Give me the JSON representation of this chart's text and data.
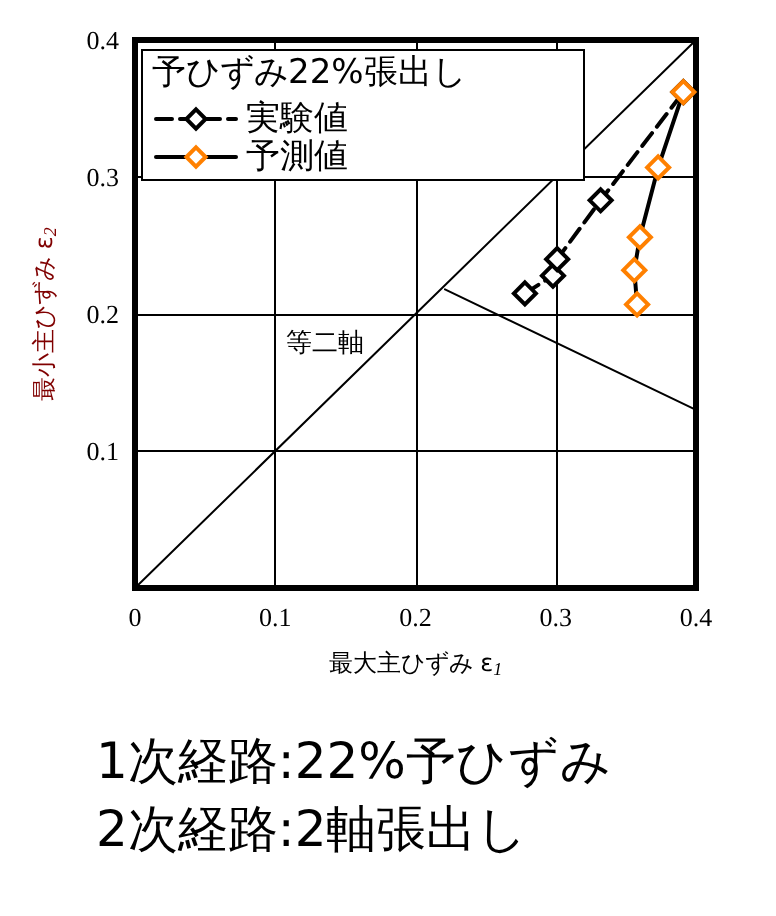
{
  "chart_data": {
    "type": "line",
    "xlabel": "最大主ひずみ ε$_{1}$",
    "ylabel": "最小主ひずみ ε$_{2}$",
    "legend_title": "予ひずみ22%張出し",
    "xlim": [
      0,
      0.4
    ],
    "ylim": [
      0,
      0.4
    ],
    "xticks": [
      0,
      0.1,
      0.2,
      0.3,
      0.4
    ],
    "yticks": [
      {
        "value": 0,
        "label": null
      },
      0.1,
      0.2,
      0.3,
      0.4
    ],
    "grid": true,
    "legend": "top left",
    "marker": "diamond",
    "series": [
      {
        "name": "実験値",
        "color": "#000000",
        "line_style": "dashed",
        "x": [
          0.278,
          0.298,
          0.301,
          0.332,
          0.391
        ],
        "values": [
          0.215,
          0.228,
          0.24,
          0.283,
          0.362
        ]
      },
      {
        "name": "予測値",
        "color": "#ff8000",
        "line_style": "solid",
        "x": [
          0.358,
          0.356,
          0.36,
          0.373,
          0.391
        ],
        "values": [
          0.207,
          0.232,
          0.256,
          0.307,
          0.362
        ]
      },
      {
        "color": "#000000",
        "line_style": "solid",
        "marker": "none",
        "x": [
          0,
          0.4
        ],
        "values": [
          0,
          0.4
        ]
      },
      {
        "color": "#000000",
        "line_style": "solid",
        "marker": "none",
        "x": [
          0.221,
          0.4
        ],
        "values": [
          0.218,
          0.13
        ]
      }
    ],
    "annotations": [
      "等二軸",
      "1次経路:22%予ひずみ",
      "2次経路:2軸張出し"
    ]
  }
}
